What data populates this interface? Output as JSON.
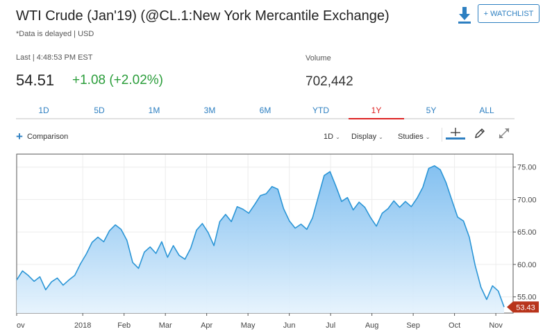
{
  "header": {
    "title": "WTI Crude (Jan'19) (@CL.1:New York Mercantile Exchange)",
    "subtitle": "*Data is delayed | USD",
    "watchlist_label": "+ WATCHLIST"
  },
  "quote": {
    "last_label": "Last | 4:48:53 PM EST",
    "last_price": "54.51",
    "change": "+1.08 (+2.02%)",
    "volume_label": "Volume",
    "volume_value": "702,442"
  },
  "range_tabs": [
    {
      "label": "1D",
      "active": false
    },
    {
      "label": "5D",
      "active": false
    },
    {
      "label": "1M",
      "active": false
    },
    {
      "label": "3M",
      "active": false
    },
    {
      "label": "6M",
      "active": false
    },
    {
      "label": "YTD",
      "active": false
    },
    {
      "label": "1Y",
      "active": true
    },
    {
      "label": "5Y",
      "active": false
    },
    {
      "label": "ALL",
      "active": false
    }
  ],
  "toolbar": {
    "comparison_label": "Comparison",
    "interval_label": "1D",
    "display_label": "Display",
    "studies_label": "Studies"
  },
  "colors": {
    "accent": "#2d7fc1",
    "line": "#2a95d6",
    "positive": "#2a9d3a",
    "active_tab": "#dd2222",
    "last_badge": "#b8341b"
  },
  "chart_data": {
    "type": "area",
    "y_ticks": [
      "75.00",
      "70.00",
      "65.00",
      "60.00",
      "55.00"
    ],
    "ylim": [
      52.5,
      77
    ],
    "x_tick_labels": [
      "ov",
      "2018",
      "Feb",
      "Mar",
      "Apr",
      "May",
      "Jun",
      "Jul",
      "Aug",
      "Sep",
      "Oct",
      "Nov"
    ],
    "x_tick_positions": [
      0,
      2,
      4,
      6,
      8,
      10,
      12,
      14,
      16,
      18,
      20,
      22
    ],
    "last_value_label": "53.43",
    "series": [
      {
        "values": [
          57.6,
          59.0,
          58.3,
          57.4,
          58.1,
          56.1,
          57.3,
          57.9,
          56.8,
          57.6,
          58.3,
          60.1,
          61.6,
          63.4,
          64.2,
          63.5,
          65.2,
          66.1,
          65.4,
          63.7,
          60.3,
          59.4,
          61.9,
          62.7,
          61.7,
          63.5,
          61.1,
          62.9,
          61.4,
          60.8,
          62.5,
          65.3,
          66.3,
          64.9,
          62.9,
          66.6,
          67.7,
          66.6,
          68.9,
          68.5,
          67.9,
          69.2,
          70.6,
          70.9,
          72.0,
          71.6,
          68.6,
          66.7,
          65.6,
          66.2,
          65.4,
          67.2,
          70.5,
          73.7,
          74.3,
          72.1,
          69.7,
          70.3,
          68.4,
          69.6,
          68.8,
          67.2,
          65.9,
          67.9,
          68.6,
          69.8,
          68.8,
          69.7,
          68.9,
          70.2,
          71.9,
          74.8,
          75.2,
          74.6,
          72.6,
          69.9,
          67.3,
          66.7,
          64.2,
          59.9,
          56.5,
          54.6,
          56.7,
          55.9,
          53.43
        ]
      }
    ]
  }
}
